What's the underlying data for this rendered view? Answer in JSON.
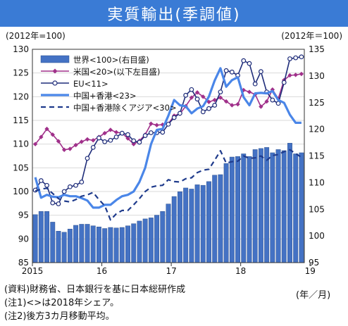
{
  "title": "実質輸出(季調値)",
  "chart_data": {
    "type": "bar",
    "left_axis_label": "(2012年=100)",
    "right_axis_label": "(2012年＝100)",
    "ylim_left": [
      85,
      130
    ],
    "ylim_right": [
      95,
      135
    ],
    "left_ticks": [
      "85",
      "90",
      "95",
      "100",
      "105",
      "110",
      "115",
      "120",
      "125",
      "130"
    ],
    "right_ticks": [
      "95",
      "100",
      "105",
      "110",
      "115",
      "120",
      "125",
      "130",
      "135"
    ],
    "x_tick_labels": [
      "2015",
      "16",
      "17",
      "18",
      "19"
    ],
    "x_unit": "(年／月)",
    "grid": true,
    "legend_position": "top-left",
    "colors": {
      "bars": "#4472c4",
      "japan": "#a0308a",
      "eu": "#1f2d7a",
      "china_hk": "#4a86e8",
      "china_ex": "#1f3b8c"
    },
    "series": [
      {
        "name": "世界<100>(右目盛)",
        "kind": "bar",
        "axis": "right",
        "values": [
          104.0,
          104.6,
          104.6,
          102.6,
          100.9,
          100.7,
          101.3,
          102.0,
          102.2,
          102.2,
          101.9,
          101.7,
          101.4,
          101.6,
          101.5,
          101.6,
          101.9,
          102.3,
          102.8,
          103.2,
          103.4,
          103.9,
          104.6,
          106.0,
          107.4,
          108.3,
          109.0,
          108.8,
          109.6,
          109.5,
          110.2,
          111.4,
          111.5,
          113.6,
          114.8,
          114.9,
          115.4,
          114.9,
          116.2,
          116.4,
          116.6,
          115.6,
          116.2,
          116.0,
          117.4,
          115.4,
          115.6
        ]
      },
      {
        "name": "米国<20>(以下左目盛)",
        "kind": "line",
        "axis": "left",
        "marker": "diamond",
        "values": [
          110.0,
          111.5,
          113.2,
          112.0,
          110.6,
          108.8,
          109.0,
          109.8,
          110.5,
          111.0,
          110.8,
          111.5,
          112.3,
          113.0,
          112.5,
          112.3,
          111.2,
          110.0,
          110.7,
          112.0,
          114.3,
          114.0,
          114.1,
          114.3,
          116.0,
          116.4,
          118.0,
          119.8,
          120.9,
          120.0,
          118.9,
          119.3,
          119.8,
          119.0,
          118.2,
          118.4,
          121.4,
          121.0,
          120.5,
          117.9,
          119.0,
          121.5,
          119.6,
          123.5,
          124.5,
          124.6,
          124.8
        ]
      },
      {
        "name": "EU<11>",
        "kind": "line",
        "axis": "left",
        "marker": "circle",
        "values": [
          100.3,
          102.3,
          101.3,
          97.6,
          97.4,
          100.0,
          101.0,
          101.3,
          102.0,
          107.0,
          109.3,
          111.3,
          110.5,
          110.8,
          111.5,
          112.3,
          112.0,
          110.7,
          110.4,
          111.8,
          112.4,
          112.4,
          112.5,
          114.2,
          115.6,
          116.5,
          120.3,
          121.5,
          119.5,
          116.8,
          117.5,
          118.2,
          121.0,
          125.5,
          125.2,
          124.5,
          127.6,
          127.0,
          122.7,
          125.3,
          121.0,
          119.3,
          118.6,
          123.0,
          128.0,
          128.2,
          128.4
        ]
      },
      {
        "name": "中国+香港<23>",
        "kind": "line",
        "axis": "left",
        "marker": "none",
        "values": [
          103.0,
          98.7,
          99.3,
          98.9,
          98.8,
          99.3,
          99.0,
          99.0,
          98.6,
          98.1,
          96.6,
          96.6,
          97.2,
          97.2,
          98.2,
          99.0,
          99.3,
          100.0,
          102.0,
          105.0,
          110.0,
          113.0,
          113.2,
          116.0,
          119.3,
          118.2,
          118.0,
          116.5,
          117.5,
          118.0,
          120.0,
          123.4,
          126.0,
          122.1,
          123.5,
          124.1,
          119.9,
          118.2,
          120.7,
          120.8,
          120.7,
          121.2,
          119.3,
          118.7,
          116.2,
          114.5,
          114.5
        ]
      },
      {
        "name": "中国+香港除くアジア<30>",
        "kind": "line",
        "axis": "left",
        "marker": "none",
        "dash": true,
        "values": [
          100.1,
          100.5,
          100.7,
          99.6,
          98.5,
          98.0,
          97.8,
          98.3,
          99.0,
          99.3,
          99.8,
          98.3,
          97.0,
          94.0,
          95.3,
          96.0,
          96.0,
          97.2,
          98.5,
          100.0,
          100.9,
          101.2,
          101.3,
          102.5,
          102.1,
          102.0,
          102.7,
          102.9,
          104.0,
          104.5,
          104.7,
          106.6,
          108.6,
          106.0,
          106.3,
          106.4,
          107.5,
          107.0,
          107.1,
          107.5,
          106.6,
          107.6,
          107.8,
          108.4,
          108.8,
          108.0,
          107.2
        ]
      }
    ]
  },
  "notes": [
    "(資料)財務省、日本銀行を基に日本総研作成",
    "(注1)<>は2018年シェア。",
    "(注2)後方3カ月移動平均。"
  ]
}
